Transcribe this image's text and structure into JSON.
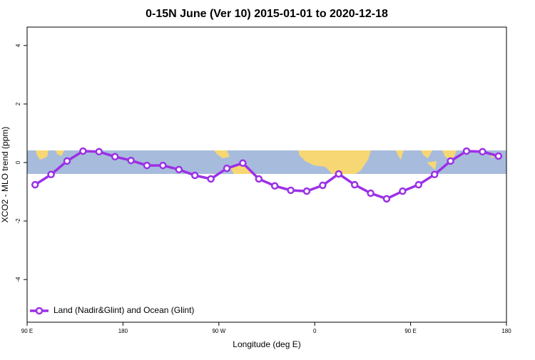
{
  "chart_data": {
    "type": "line",
    "title": "0-15N June (Ver 10)   2015-01-01 to 2020-12-18",
    "x_label": "Longitude (deg E)",
    "y_label": "XCO2 - MLO trend (ppm)",
    "x": [
      97.5,
      112.5,
      127.5,
      142.5,
      157.5,
      172.5,
      187.5,
      202.5,
      217.5,
      232.5,
      247.5,
      262.5,
      277.5,
      292.5,
      307.5,
      322.5,
      337.5,
      352.5,
      367.5,
      382.5,
      397.5,
      412.5,
      427.5,
      442.5,
      457.5,
      472.5,
      487.5,
      502.5,
      517.5,
      532.5
    ],
    "series": [
      {
        "name": "Land (Nadir&Glint) and Ocean (Glint)",
        "color": "#9b30e6",
        "values": [
          -0.76,
          -0.41,
          0.05,
          0.39,
          0.37,
          0.2,
          0.07,
          -0.1,
          -0.1,
          -0.24,
          -0.44,
          -0.56,
          -0.2,
          -0.02,
          -0.56,
          -0.8,
          -0.95,
          -0.98,
          -0.78,
          -0.39,
          -0.76,
          -1.05,
          -1.24,
          -0.98,
          -0.76,
          -0.41,
          0.05,
          0.39,
          0.37,
          0.22
        ]
      }
    ],
    "xlim": [
      90,
      540
    ],
    "xticks": [
      {
        "value": 90,
        "label": "90 E"
      },
      {
        "value": 180,
        "label": "180"
      },
      {
        "value": 270,
        "label": "90 W"
      },
      {
        "value": 360,
        "label": "0"
      },
      {
        "value": 450,
        "label": "90 E"
      },
      {
        "value": 540,
        "label": "180"
      }
    ],
    "ylim": [
      -5.46,
      4.63
    ],
    "yticks": [
      -4,
      -2,
      0,
      2,
      4
    ],
    "legend": "bottom-left"
  }
}
